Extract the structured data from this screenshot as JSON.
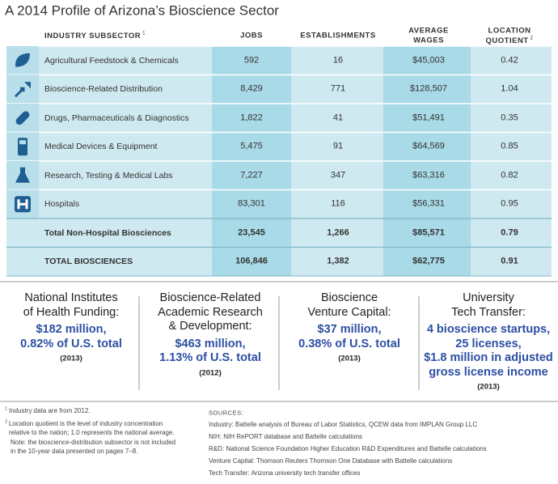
{
  "header": {
    "title": "A 2014 Profile of Arizona’s Bioscience Sector"
  },
  "table": {
    "columns": [
      {
        "lines": [
          "INDUSTRY SUBSECTOR"
        ],
        "note": "1"
      },
      {
        "lines": [
          "JOBS"
        ]
      },
      {
        "lines": [
          "ESTABLISHMENTS"
        ]
      },
      {
        "lines": [
          "AVERAGE",
          "WAGES"
        ]
      },
      {
        "lines": [
          "LOCATION",
          "QUOTIENT"
        ],
        "note": "2"
      }
    ],
    "rows": [
      [
        "Agricultural Feedstock & Chemicals",
        "592",
        "16",
        "$45,003",
        "0.42"
      ],
      [
        "Bioscience-Related Distribution",
        "8,429",
        "771",
        "$128,507",
        "1.04"
      ],
      [
        "Drugs, Pharmaceuticals & Diagnostics",
        "1,822",
        "41",
        "$51,491",
        "0.35"
      ],
      [
        "Medical Devices & Equipment",
        "5,475",
        "91",
        "$64,569",
        "0.85"
      ],
      [
        "Research, Testing & Medical Labs",
        "7,227",
        "347",
        "$63,316",
        "0.82"
      ],
      [
        "Hospitals",
        "83,301",
        "116",
        "$56,331",
        "0.95"
      ]
    ],
    "totals": [
      [
        "Total Non-Hospital Biosciences",
        "23,545",
        "1,266",
        "$85,571",
        "0.79"
      ],
      [
        "TOTAL BIOSCIENCES",
        "106,846",
        "1,382",
        "$62,775",
        "0.91"
      ]
    ]
  },
  "stats": [
    {
      "heading": [
        "National Institutes",
        "of Health Funding:"
      ],
      "value": [
        "$182 million,",
        "0.82% of U.S. total"
      ],
      "year": "(2013)"
    },
    {
      "heading": [
        "Bioscience-Related",
        "Academic Research",
        "& Development:"
      ],
      "value": [
        "$463 million,",
        "1.13% of U.S. total"
      ],
      "year": "(2012)"
    },
    {
      "heading": [
        "Bioscience",
        "Venture Capital:"
      ],
      "value": [
        "$37 million,",
        "0.38% of U.S. total"
      ],
      "year": "(2013)"
    },
    {
      "heading": [
        "University",
        "Tech Transfer:"
      ],
      "value": [
        "4 bioscience startups,",
        "25 licenses,",
        "$1.8 million in adjusted",
        "gross license income"
      ],
      "year": "(2013)"
    }
  ],
  "footnotes": [
    {
      "marker": "1",
      "lines": [
        "Industry data are from 2012."
      ]
    },
    {
      "marker": "2",
      "lines": [
        "Location quotient is the level of industry concentration",
        "relative to the nation; 1.0 represents the national average.",
        "Note: the bioscience-distribution subsector is not included",
        "in the 10-year data presented on pages 7–8."
      ]
    }
  ],
  "sources": {
    "heading": "SOURCES:",
    "lines": [
      "Industry: Battelle analysis of Bureau of Labor Statistics, QCEW data from IMPLAN Group LLC",
      "NIH: NIH RePORT database and Battelle calculations",
      "R&D: National Science Foundation Higher Education R&D Expenditures and Battelle calculations",
      "Venture Capital: Thomson Reuters Thomson One Database with Battelle calculations",
      "Tech Transfer: Arizona university tech transfer offices"
    ]
  }
}
